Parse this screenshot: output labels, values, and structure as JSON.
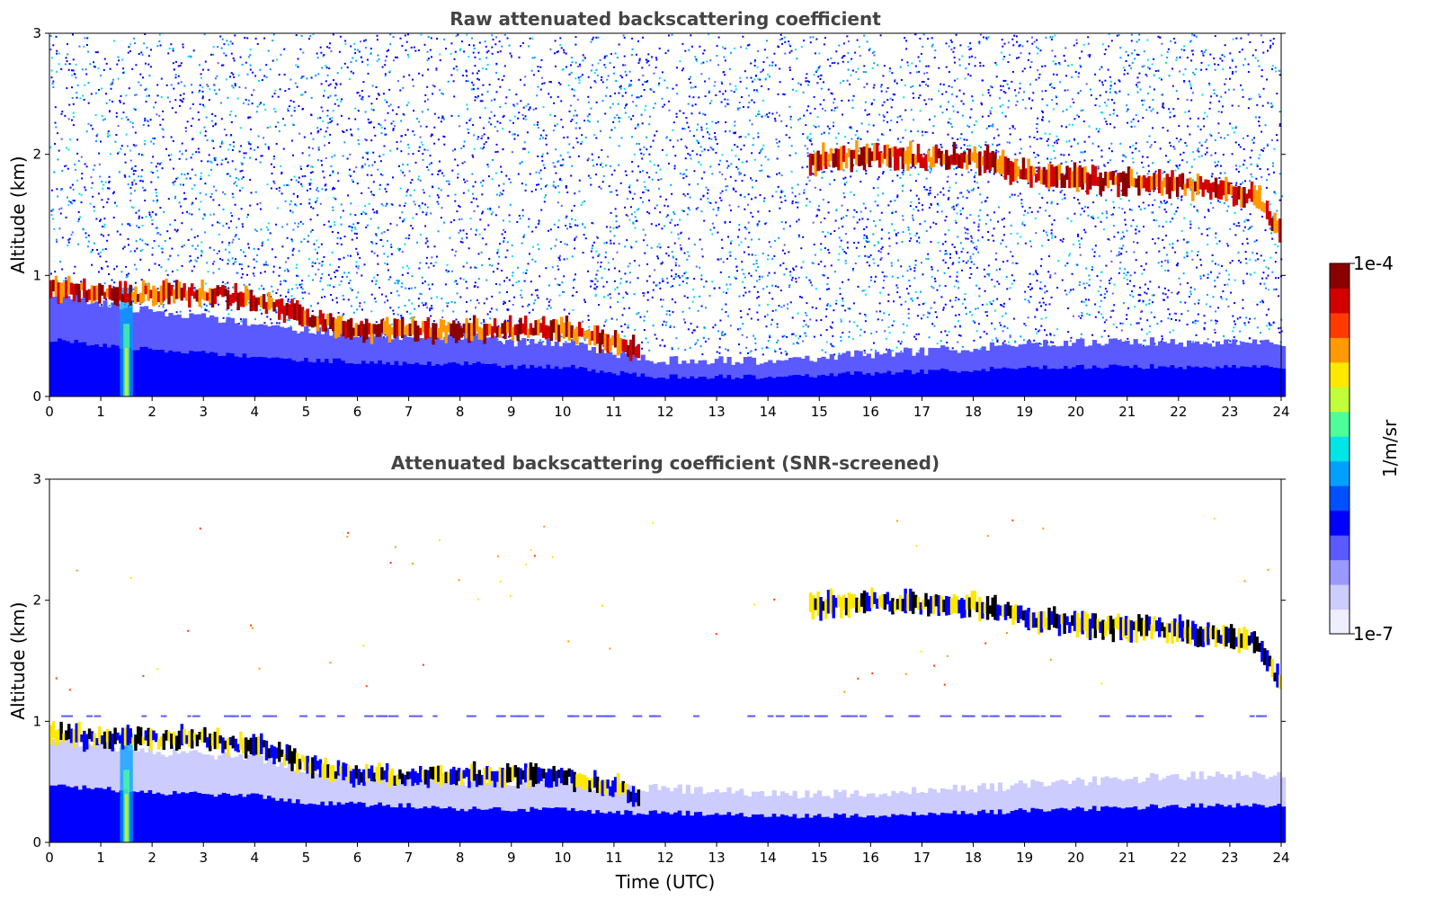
{
  "chart_data": [
    {
      "type": "heatmap",
      "title": "Raw attenuated backscattering coefficient",
      "xlabel": "",
      "ylabel": "Altitude (km)",
      "xlim": [
        0,
        24
      ],
      "ylim": [
        0,
        3
      ],
      "xticks": [
        "0",
        "1",
        "2",
        "3",
        "4",
        "5",
        "6",
        "7",
        "8",
        "9",
        "10",
        "11",
        "12",
        "13",
        "14",
        "15",
        "16",
        "17",
        "18",
        "19",
        "20",
        "21",
        "22",
        "23",
        "24"
      ],
      "yticks": [
        "0",
        "1",
        "2",
        "3"
      ],
      "features": {
        "boundary_layer_top_km": [
          [
            0,
            0.85
          ],
          [
            2,
            0.7
          ],
          [
            4,
            0.6
          ],
          [
            5,
            0.55
          ],
          [
            7,
            0.5
          ],
          [
            8,
            0.5
          ],
          [
            9,
            0.45
          ],
          [
            10,
            0.45
          ],
          [
            11,
            0.35
          ],
          [
            12,
            0.3
          ],
          [
            14,
            0.3
          ],
          [
            16,
            0.35
          ],
          [
            18,
            0.4
          ],
          [
            20,
            0.45
          ],
          [
            22,
            0.45
          ],
          [
            24,
            0.45
          ]
        ],
        "low_cloud_km": [
          [
            0,
            0.9
          ],
          [
            1,
            0.85
          ],
          [
            2,
            0.85
          ],
          [
            3,
            0.85
          ],
          [
            4,
            0.8
          ],
          [
            5,
            0.65
          ],
          [
            6,
            0.55
          ],
          [
            7,
            0.55
          ],
          [
            8,
            0.55
          ],
          [
            9,
            0.55
          ],
          [
            10,
            0.55
          ],
          [
            11,
            0.45
          ],
          [
            11.5,
            0.38
          ]
        ],
        "elevated_layer_km": [
          [
            14.8,
            1.95
          ],
          [
            16,
            2.0
          ],
          [
            17,
            1.97
          ],
          [
            18,
            1.97
          ],
          [
            19,
            1.85
          ],
          [
            20,
            1.8
          ],
          [
            21,
            1.78
          ],
          [
            22,
            1.75
          ],
          [
            22.8,
            1.7
          ],
          [
            23.5,
            1.65
          ],
          [
            24,
            1.3
          ]
        ],
        "precip_streak_hours": [
          1.5
        ]
      }
    },
    {
      "type": "heatmap",
      "title": "Attenuated backscattering coefficient (SNR-screened)",
      "xlabel": "Time (UTC)",
      "ylabel": "Altitude (km)",
      "xlim": [
        0,
        24
      ],
      "ylim": [
        0,
        3
      ],
      "xticks": [
        "0",
        "1",
        "2",
        "3",
        "4",
        "5",
        "6",
        "7",
        "8",
        "9",
        "10",
        "11",
        "12",
        "13",
        "14",
        "15",
        "16",
        "17",
        "18",
        "19",
        "20",
        "21",
        "22",
        "23",
        "24"
      ],
      "yticks": [
        "0",
        "1",
        "2",
        "3"
      ],
      "features": {
        "boundary_layer_top_km": [
          [
            0,
            0.85
          ],
          [
            2,
            0.75
          ],
          [
            4,
            0.7
          ],
          [
            5,
            0.6
          ],
          [
            7,
            0.55
          ],
          [
            8,
            0.5
          ],
          [
            10,
            0.5
          ],
          [
            11,
            0.45
          ],
          [
            12,
            0.45
          ],
          [
            14,
            0.4
          ],
          [
            16,
            0.4
          ],
          [
            18,
            0.45
          ],
          [
            20,
            0.5
          ],
          [
            22,
            0.55
          ],
          [
            24,
            0.55
          ]
        ],
        "low_cloud_km": [
          [
            0,
            0.9
          ],
          [
            1,
            0.85
          ],
          [
            2,
            0.85
          ],
          [
            3,
            0.85
          ],
          [
            4,
            0.8
          ],
          [
            5,
            0.65
          ],
          [
            6,
            0.55
          ],
          [
            7,
            0.55
          ],
          [
            8,
            0.55
          ],
          [
            9,
            0.55
          ],
          [
            10,
            0.55
          ],
          [
            11,
            0.45
          ],
          [
            11.5,
            0.38
          ]
        ],
        "elevated_layer_km": [
          [
            14.8,
            1.95
          ],
          [
            16,
            2.0
          ],
          [
            17,
            1.97
          ],
          [
            18,
            1.97
          ],
          [
            19,
            1.85
          ],
          [
            20,
            1.8
          ],
          [
            21,
            1.78
          ],
          [
            22,
            1.75
          ],
          [
            22.8,
            1.7
          ],
          [
            23.5,
            1.65
          ],
          [
            24,
            1.3
          ]
        ],
        "precip_streak_hours": [
          1.5
        ]
      }
    }
  ],
  "colorbar": {
    "label": "1/m/sr",
    "max_label": "1e-4",
    "min_label": "1e-7",
    "colors": [
      "#eeeeff",
      "#ccccff",
      "#9999ff",
      "#5a5aff",
      "#0000ff",
      "#0050ff",
      "#00a0ff",
      "#00e5e5",
      "#4dff9a",
      "#c0ff3a",
      "#ffe800",
      "#ff9a00",
      "#ff3a00",
      "#d40000",
      "#8b0000"
    ]
  }
}
